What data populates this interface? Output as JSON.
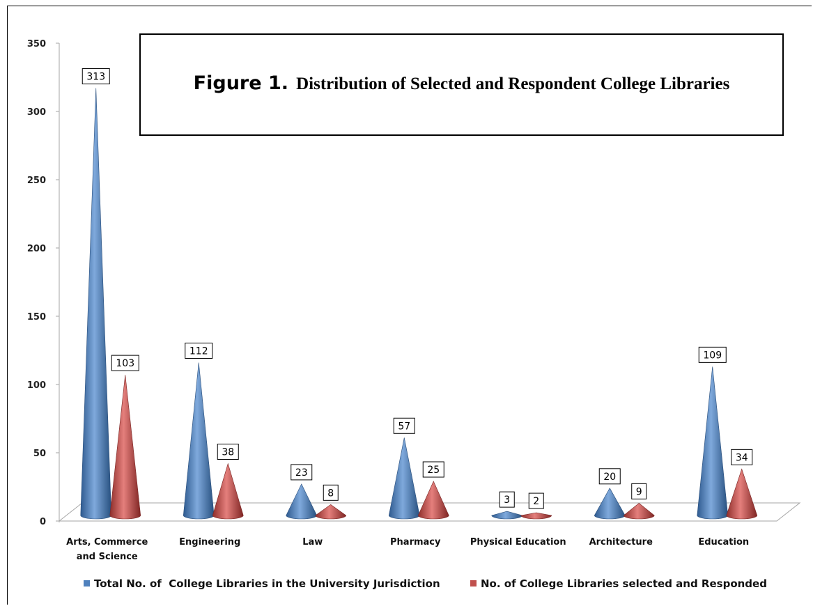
{
  "chart_data": {
    "type": "bar",
    "title_lead": "Figure 1.",
    "title": "Distribution of Selected and Respondent College Libraries",
    "xlabel": "",
    "ylabel": "",
    "ylim": [
      0,
      350
    ],
    "yticks": [
      0,
      50,
      100,
      150,
      200,
      250,
      300,
      350
    ],
    "categories": [
      "Arts, Commerce and Science",
      "Engineering",
      "Law",
      "Pharmacy",
      "Physical Education",
      "Architecture",
      "Education"
    ],
    "category_lines": [
      [
        "Arts, Commerce",
        "and Science"
      ],
      [
        "Engineering"
      ],
      [
        "Law"
      ],
      [
        "Pharmacy"
      ],
      [
        "Physical Education"
      ],
      [
        "Architecture"
      ],
      [
        "Education"
      ]
    ],
    "series": [
      {
        "name": "Total No. of  College Libraries in the University Jurisdiction",
        "values": [
          313,
          112,
          23,
          57,
          3,
          20,
          109
        ],
        "color": "#4f81bd"
      },
      {
        "name": "No. of College Libraries selected and Responded",
        "values": [
          103,
          38,
          8,
          25,
          2,
          9,
          34
        ],
        "color": "#c0504d"
      }
    ],
    "grid": false,
    "legend_position": "bottom",
    "mark_shape": "cone"
  }
}
